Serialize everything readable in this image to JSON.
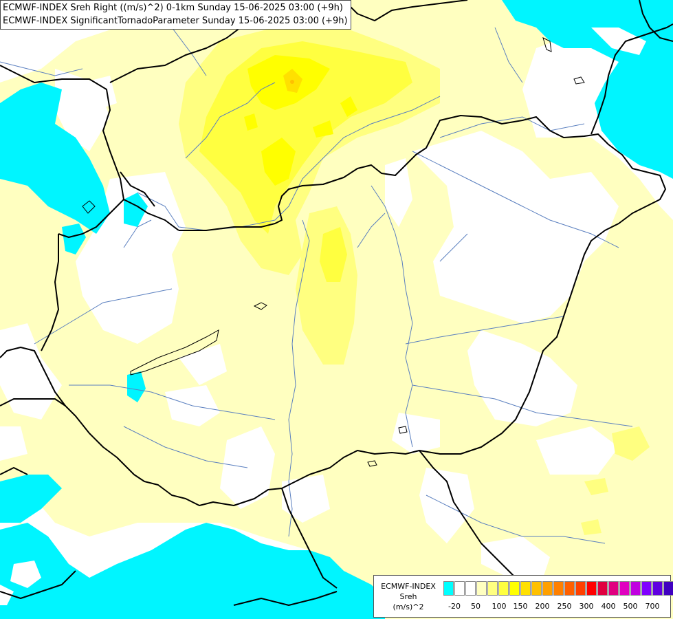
{
  "header": {
    "line1": "ECMWF-INDEX Sreh Right ((m/s)^2) 0-1km Sunday 15-06-2025 03:00 (+9h)",
    "line2": "ECMWF-INDEX SignificantTornadoParameter Sunday 15-06-2025 03:00 (+9h)"
  },
  "legend": {
    "title_line1": "ECMWF-INDEX",
    "title_line2": "Sreh",
    "title_line3": "(m/s)^2",
    "colors": [
      "#00ffff",
      "#ffffff",
      "#ffffff",
      "#ffffc0",
      "#ffff80",
      "#ffff40",
      "#ffff00",
      "#ffe000",
      "#ffc000",
      "#ffa000",
      "#ff8000",
      "#ff6000",
      "#ff4000",
      "#ff0000",
      "#e00040",
      "#e00080",
      "#e000c0",
      "#c000e0",
      "#8000ff",
      "#6000e0",
      "#4000c0",
      "#000080"
    ],
    "ticks": [
      "-20",
      "50",
      "100",
      "150",
      "200",
      "250",
      "300",
      "400",
      "500",
      "700"
    ]
  },
  "palette": {
    "cyan": "#00f5ff",
    "pale_yellow": "#ffffc0",
    "light_yellow": "#ffff80",
    "yellow": "#ffff40",
    "bright_yellow": "#ffff00",
    "gold": "#ffe000",
    "orange": "#ffc000",
    "border": "#000000",
    "river": "#5a7fbf"
  }
}
